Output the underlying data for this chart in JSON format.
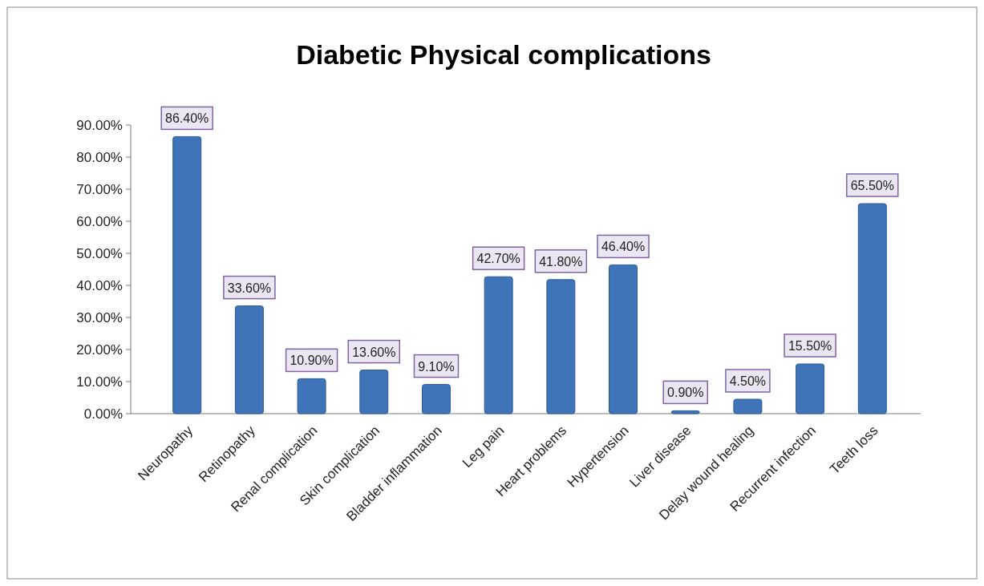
{
  "chart_data": {
    "type": "bar",
    "title": "Diabetic Physical complications",
    "categories": [
      "Neuropathy",
      "Retinopathy",
      "Renal complication",
      "Skin complication",
      "Bladder inflammation",
      "Leg pain",
      "Heart problems",
      "Hypertension",
      "Liver disease",
      "Delay wound healing",
      "Recurrent infection",
      "Teeth loss"
    ],
    "values": [
      86.4,
      33.6,
      10.9,
      13.6,
      9.1,
      42.7,
      41.8,
      46.4,
      0.9,
      4.5,
      15.5,
      65.5
    ],
    "value_labels": [
      "86.40%",
      "33.60%",
      "10.90%",
      "13.60%",
      "9.10%",
      "42.70%",
      "41.80%",
      "46.40%",
      "0.90%",
      "4.50%",
      "15.50%",
      "65.50%"
    ],
    "color": "#3f74b8",
    "ylim": [
      0,
      90
    ],
    "yticks": [
      {
        "value": 0,
        "label": "0.00%"
      },
      {
        "value": 10,
        "label": "10.00%"
      },
      {
        "value": 20,
        "label": "20.00%"
      },
      {
        "value": 30,
        "label": "30.00%"
      },
      {
        "value": 40,
        "label": "40.00%"
      },
      {
        "value": 50,
        "label": "50.00%"
      },
      {
        "value": 60,
        "label": "60.00%"
      },
      {
        "value": 70,
        "label": "70.00%"
      },
      {
        "value": 80,
        "label": "80.00%"
      },
      {
        "value": 90,
        "label": "90.00%"
      }
    ],
    "grid": false
  }
}
